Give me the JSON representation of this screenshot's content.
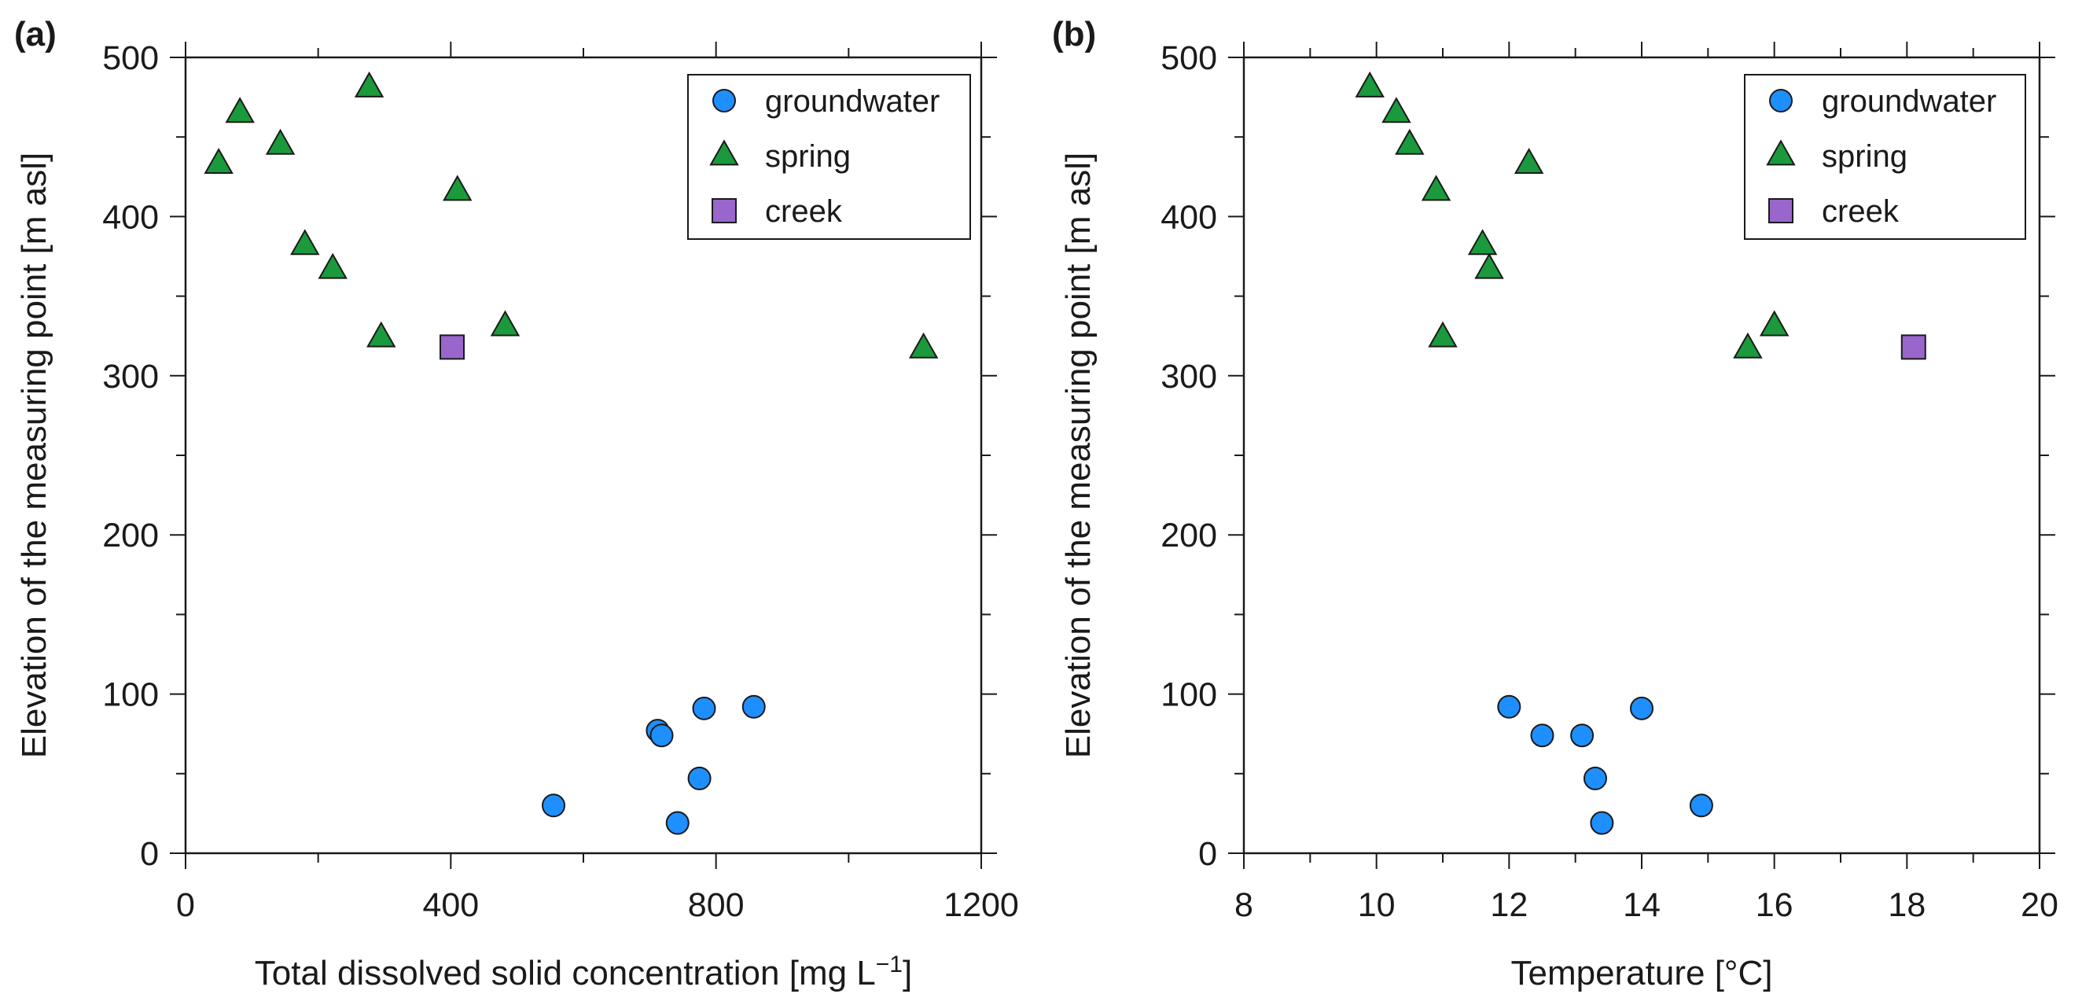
{
  "chart_data": [
    {
      "type": "scatter",
      "panel_label": "(a)",
      "title": "",
      "xlabel": "Total dissolved solid concentration [mg L",
      "xlabel_superscript": "−1",
      "xlabel_suffix": "]",
      "ylabel": "Elevation of the measuring point [m asl]",
      "xlim": [
        0,
        1200
      ],
      "ylim": [
        0,
        500
      ],
      "xticks": [
        "0",
        "400",
        "800",
        "1200"
      ],
      "yticks": [
        "0",
        "100",
        "200",
        "300",
        "400",
        "500"
      ],
      "legend_position": "top-right",
      "series": [
        {
          "name": "groundwater",
          "marker": "circle",
          "color": "#1e8fff",
          "points": [
            [
              555,
              30
            ],
            [
              712,
              77
            ],
            [
              718,
              74
            ],
            [
              742,
              19
            ],
            [
              775,
              47
            ],
            [
              782,
              91
            ],
            [
              857,
              92
            ]
          ]
        },
        {
          "name": "spring",
          "marker": "triangle",
          "color": "#1a9a3c",
          "points": [
            [
              50,
              433
            ],
            [
              82,
              465
            ],
            [
              143,
              445
            ],
            [
              180,
              382
            ],
            [
              222,
              367
            ],
            [
              277,
              481
            ],
            [
              295,
              324
            ],
            [
              410,
              416
            ],
            [
              482,
              331
            ],
            [
              1113,
              317
            ]
          ]
        },
        {
          "name": "creek",
          "marker": "square",
          "color": "#9966cc",
          "points": [
            [
              402,
              318
            ]
          ]
        }
      ]
    },
    {
      "type": "scatter",
      "panel_label": "(b)",
      "title": "",
      "xlabel": "Temperature [°C]",
      "ylabel": "Elevation of the measuring point [m asl]",
      "xlim": [
        8,
        20
      ],
      "ylim": [
        0,
        500
      ],
      "xticks": [
        "8",
        "10",
        "12",
        "14",
        "16",
        "18",
        "20"
      ],
      "yticks": [
        "0",
        "100",
        "200",
        "300",
        "400",
        "500"
      ],
      "legend_position": "top-right",
      "series": [
        {
          "name": "groundwater",
          "marker": "circle",
          "color": "#1e8fff",
          "points": [
            [
              12.0,
              92
            ],
            [
              12.5,
              74
            ],
            [
              13.1,
              74
            ],
            [
              13.3,
              47
            ],
            [
              13.4,
              19
            ],
            [
              14.0,
              91
            ],
            [
              14.9,
              30
            ]
          ]
        },
        {
          "name": "spring",
          "marker": "triangle",
          "color": "#1a9a3c",
          "points": [
            [
              9.9,
              481
            ],
            [
              10.3,
              465
            ],
            [
              10.5,
              445
            ],
            [
              10.9,
              416
            ],
            [
              11.0,
              324
            ],
            [
              11.6,
              382
            ],
            [
              11.7,
              367
            ],
            [
              12.3,
              433
            ],
            [
              15.6,
              317
            ],
            [
              16.0,
              331
            ]
          ]
        },
        {
          "name": "creek",
          "marker": "square",
          "color": "#9966cc",
          "points": [
            [
              18.1,
              318
            ]
          ]
        }
      ]
    }
  ]
}
